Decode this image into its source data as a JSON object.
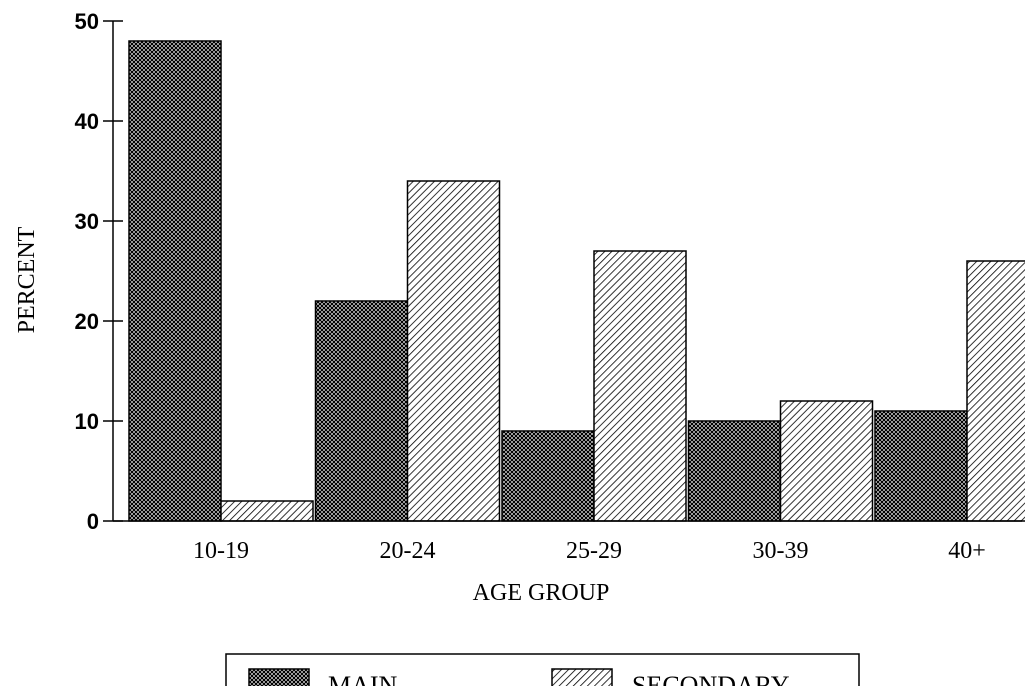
{
  "chart_data": {
    "type": "bar",
    "title": "",
    "xlabel": "AGE GROUP",
    "ylabel": "PERCENT",
    "ylim": [
      0,
      50
    ],
    "yticks": [
      0,
      10,
      20,
      30,
      40,
      50
    ],
    "grid": false,
    "legend_position": "bottom",
    "categories": [
      "10-19",
      "20-24",
      "25-29",
      "30-39",
      "40+"
    ],
    "series": [
      {
        "name": "MAIN",
        "values": [
          48,
          22,
          9,
          10,
          11
        ],
        "pattern": "crosshatch"
      },
      {
        "name": "SECONDARY",
        "values": [
          2,
          34,
          27,
          12,
          26
        ],
        "pattern": "diagonal"
      }
    ]
  },
  "colors": {
    "ink": "#000000",
    "background": "#ffffff"
  }
}
